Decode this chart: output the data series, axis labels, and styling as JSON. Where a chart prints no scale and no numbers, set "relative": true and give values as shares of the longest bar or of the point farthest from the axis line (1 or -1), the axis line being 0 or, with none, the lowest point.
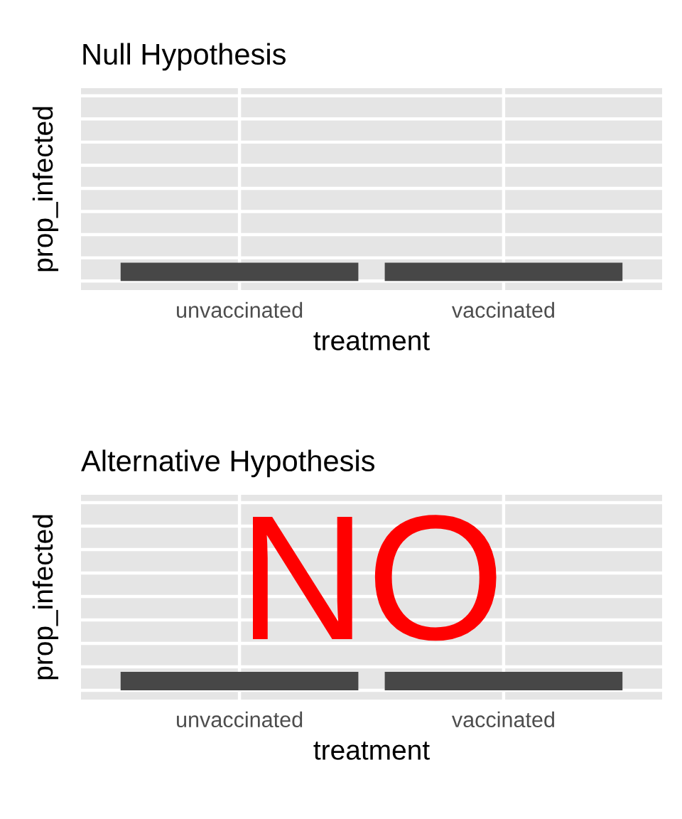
{
  "chart_data": [
    {
      "type": "bar",
      "title": "Null Hypothesis",
      "xlabel": "treatment",
      "ylabel": "prop_infected",
      "categories": [
        "unvaccinated",
        "vaccinated"
      ],
      "series": [
        {
          "color": "#474747",
          "values": [
            1,
            1
          ]
        }
      ],
      "relative": true,
      "grid": true
    },
    {
      "type": "bar",
      "title": "Alternative Hypothesis",
      "xlabel": "treatment",
      "ylabel": "prop_infected",
      "categories": [
        "unvaccinated",
        "vaccinated"
      ],
      "series": [
        {
          "color": "#474747",
          "values": [
            1,
            1
          ]
        }
      ],
      "relative": true,
      "grid": true,
      "annotations": [
        "NO"
      ]
    }
  ]
}
